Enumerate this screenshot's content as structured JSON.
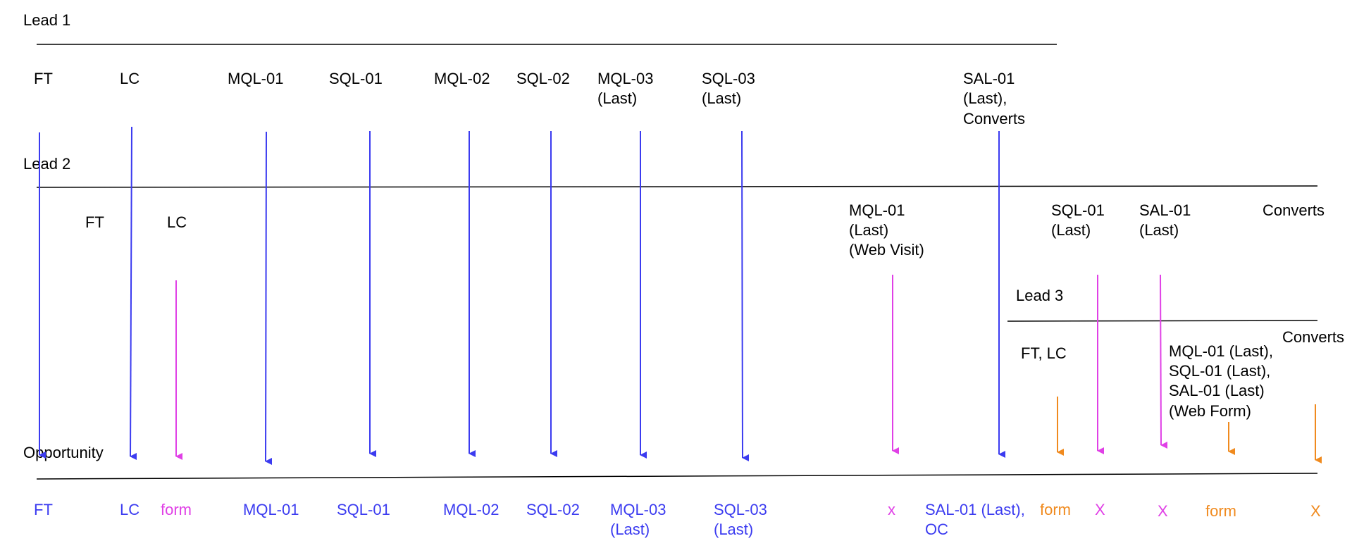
{
  "colors": {
    "black": "#000000",
    "blue": "#3b3bf0",
    "magenta": "#e040e6",
    "orange": "#f08a1e"
  },
  "sections": {
    "lead1": "Lead 1",
    "lead2": "Lead 2",
    "lead3": "Lead 3",
    "opportunity": "Opportunity"
  },
  "lead1_labels": {
    "ft": "FT",
    "lc": "LC",
    "mql01": "MQL-01",
    "sql01": "SQL-01",
    "mql02": "MQL-02",
    "sql02": "SQL-02",
    "mql03": [
      "MQL-03",
      "(Last)"
    ],
    "sql03": [
      "SQL-03",
      "(Last)"
    ],
    "sal01": [
      "SAL-01",
      "(Last),",
      "Converts"
    ]
  },
  "lead2_labels": {
    "ft": "FT",
    "lc": "LC",
    "mql01": [
      "MQL-01",
      "(Last)",
      "(Web Visit)"
    ],
    "sql01": [
      "SQL-01",
      "(Last)"
    ],
    "sal01": [
      "SAL-01",
      "(Last)"
    ],
    "converts": "Converts"
  },
  "lead3_labels": {
    "ftlc": "FT, LC",
    "combo": [
      "MQL-01 (Last),",
      "SQL-01 (Last),",
      "SAL-01 (Last)",
      "(Web Form)"
    ],
    "converts": "Converts"
  },
  "opportunity_labels": {
    "ft": "FT",
    "lc": "LC",
    "form1": "form",
    "mql01": "MQL-01",
    "sql01": "SQL-01",
    "mql02": "MQL-02",
    "sql02": "SQL-02",
    "mql03": [
      "MQL-03",
      "(Last)"
    ],
    "sql03": [
      "SQL-03",
      "(Last)"
    ],
    "x1": "x",
    "sal01oc": [
      "SAL-01 (Last),",
      "OC"
    ],
    "form2": "form",
    "x2": "X",
    "x3": "X",
    "form3": "form",
    "x4": "X"
  }
}
